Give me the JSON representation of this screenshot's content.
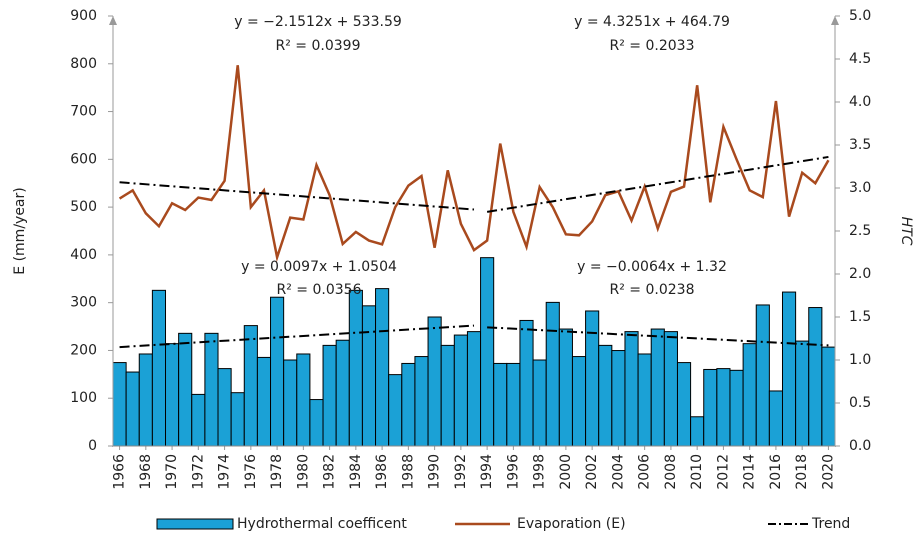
{
  "chart_data": {
    "type": "bar_line",
    "y_label": "E (mm/year)",
    "y2_label": "HTC",
    "x": [
      1966,
      1967,
      1968,
      1969,
      1970,
      1971,
      1972,
      1973,
      1974,
      1975,
      1976,
      1977,
      1978,
      1979,
      1980,
      1981,
      1982,
      1983,
      1984,
      1985,
      1986,
      1987,
      1988,
      1989,
      1990,
      1991,
      1992,
      1993,
      1994,
      1995,
      1996,
      1997,
      1998,
      1999,
      2000,
      2001,
      2002,
      2003,
      2004,
      2005,
      2006,
      2007,
      2008,
      2009,
      2010,
      2011,
      2012,
      2013,
      2014,
      2015,
      2016,
      2017,
      2018,
      2019,
      2020
    ],
    "xlim": [
      1965.5,
      2020.5
    ],
    "xticks": [
      1966,
      1968,
      1970,
      1972,
      1974,
      1976,
      1978,
      1980,
      1982,
      1984,
      1986,
      1988,
      1990,
      1992,
      1994,
      1996,
      1998,
      2000,
      2002,
      2004,
      2006,
      2008,
      2010,
      2012,
      2014,
      2016,
      2018,
      2020
    ],
    "ylim": [
      0,
      900
    ],
    "yticks": [
      0,
      100,
      200,
      300,
      400,
      500,
      600,
      700,
      800,
      900
    ],
    "y2lim": [
      0,
      5
    ],
    "y2ticks": [
      {
        "value": 0,
        "label": "0.0"
      },
      0.5,
      {
        "value": 1,
        "label": "1.0"
      },
      1.5,
      {
        "value": 2,
        "label": "2.0"
      },
      2.5,
      {
        "value": 3,
        "label": "3.0"
      },
      3.5,
      {
        "value": 4,
        "label": "4.0"
      },
      4.5,
      {
        "value": 5,
        "label": "5.0"
      }
    ],
    "series": [
      {
        "name": "Hydrothermal coefficent",
        "type": "bar",
        "axis": "y2",
        "color": "#1ba1d6",
        "values": [
          0.97,
          0.86,
          1.07,
          1.81,
          1.19,
          1.31,
          0.6,
          1.31,
          0.9,
          0.62,
          1.4,
          1.03,
          1.73,
          1.0,
          1.07,
          0.54,
          1.17,
          1.23,
          1.81,
          1.63,
          1.83,
          0.83,
          0.96,
          1.04,
          1.5,
          1.17,
          1.29,
          1.33,
          2.19,
          0.96,
          0.96,
          1.46,
          1.0,
          1.67,
          1.36,
          1.04,
          1.57,
          1.17,
          1.11,
          1.33,
          1.07,
          1.36,
          1.33,
          0.97,
          0.34,
          0.89,
          0.9,
          0.88,
          1.19,
          1.64,
          0.64,
          1.79,
          1.22,
          1.61,
          1.15
        ]
      },
      {
        "name": "Evaporation (E)",
        "type": "line",
        "axis": "y",
        "color": "#a94a1e",
        "values": [
          518,
          535,
          487,
          460,
          508,
          494,
          520,
          515,
          555,
          797,
          500,
          535,
          395,
          478,
          474,
          588,
          525,
          423,
          448,
          430,
          422,
          500,
          545,
          565,
          415,
          577,
          465,
          410,
          430,
          633,
          490,
          417,
          542,
          500,
          443,
          441,
          470,
          525,
          533,
          472,
          543,
          455,
          532,
          543,
          755,
          510,
          668,
          600,
          535,
          521,
          722,
          480,
          572,
          550,
          598
        ]
      }
    ],
    "trend": {
      "name": "Trend",
      "color": "#000000",
      "segments": [
        {
          "axis": "y",
          "x": [
            1966,
            1993
          ],
          "values": [
            552,
            495
          ]
        },
        {
          "axis": "y",
          "x": [
            1994,
            2020
          ],
          "values": [
            490,
            605
          ]
        },
        {
          "axis": "y2",
          "x": [
            1966,
            1993
          ],
          "values": [
            1.15,
            1.4
          ]
        },
        {
          "axis": "y2",
          "x": [
            1994,
            2020
          ],
          "values": [
            1.38,
            1.17
          ]
        }
      ]
    },
    "annotations": [
      "y = −2.1512x + 533.59",
      "R² = 0.0399",
      "y = 4.3251x + 464.79",
      "R² = 0.2033",
      "y = 0.0097x + 1.0504",
      "R² = 0.0356",
      "y = −0.0064x + 1.32",
      "R² = 0.0238"
    ]
  }
}
